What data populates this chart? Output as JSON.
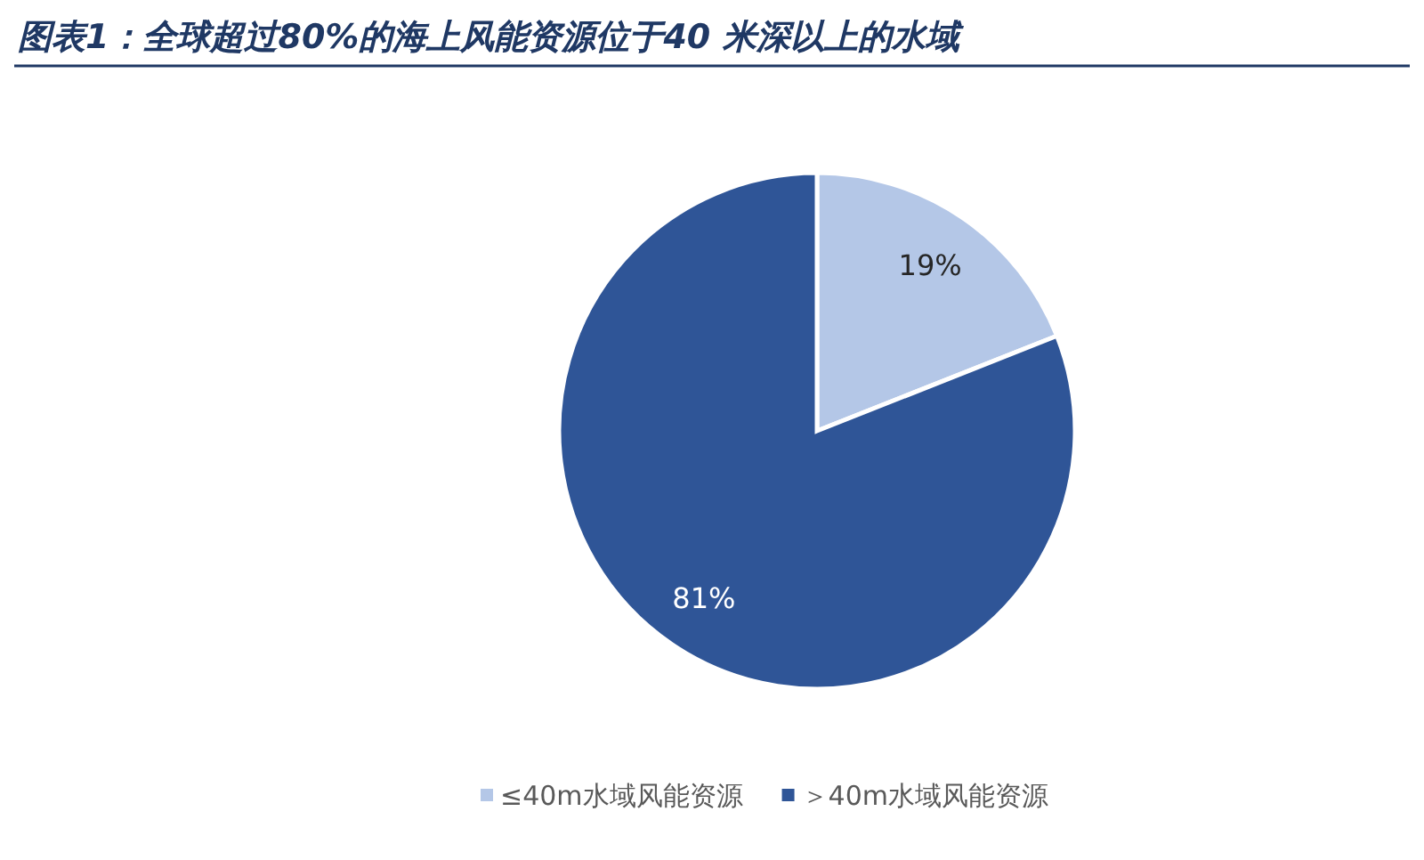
{
  "chart_data": {
    "type": "pie",
    "title": "图表1：全球超过80%的海上风能资源位于40 米深以上的水域",
    "categories": [
      "≤40m水域风能资源",
      "＞40m水域风能资源"
    ],
    "values": [
      19,
      81
    ],
    "colors": [
      "#b4c7e7",
      "#2f5597"
    ],
    "value_labels": [
      "19%",
      "81%"
    ],
    "legend": "bottom"
  }
}
